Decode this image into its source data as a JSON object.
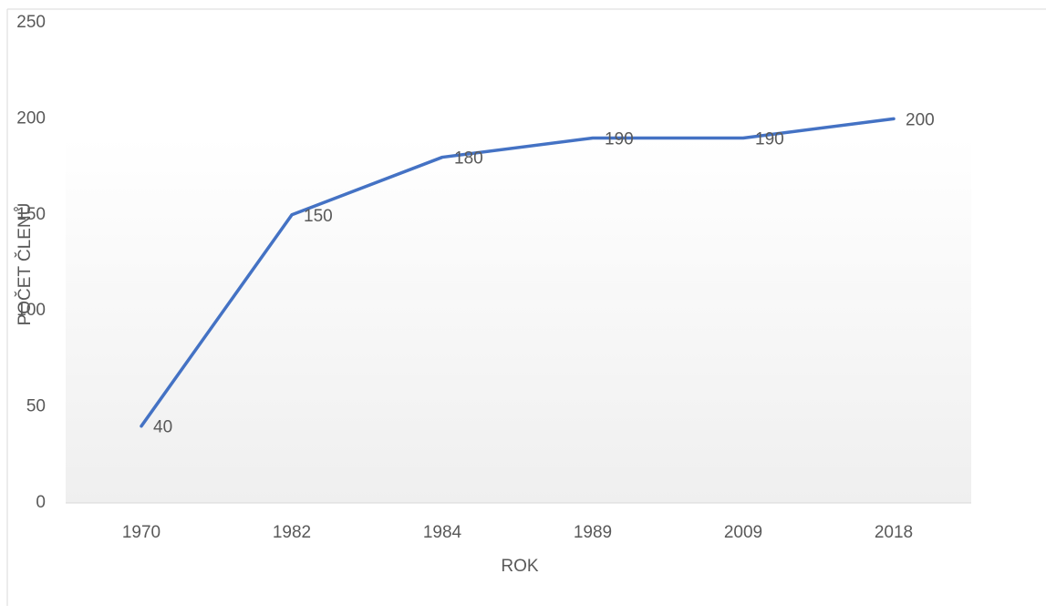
{
  "chart_data": {
    "type": "line",
    "categories": [
      "1970",
      "1982",
      "1984",
      "1989",
      "2009",
      "2018"
    ],
    "series": [
      {
        "name": "POČET ČLENŮ",
        "color": "#4472c4",
        "values": [
          40,
          150,
          180,
          190,
          190,
          200
        ]
      }
    ],
    "x_label": "ROK",
    "y_label": "POČET ČLENŮ",
    "ylim": [
      0,
      250
    ],
    "yticks": [
      0,
      50,
      100,
      150,
      200,
      250
    ],
    "data_labels": true
  }
}
